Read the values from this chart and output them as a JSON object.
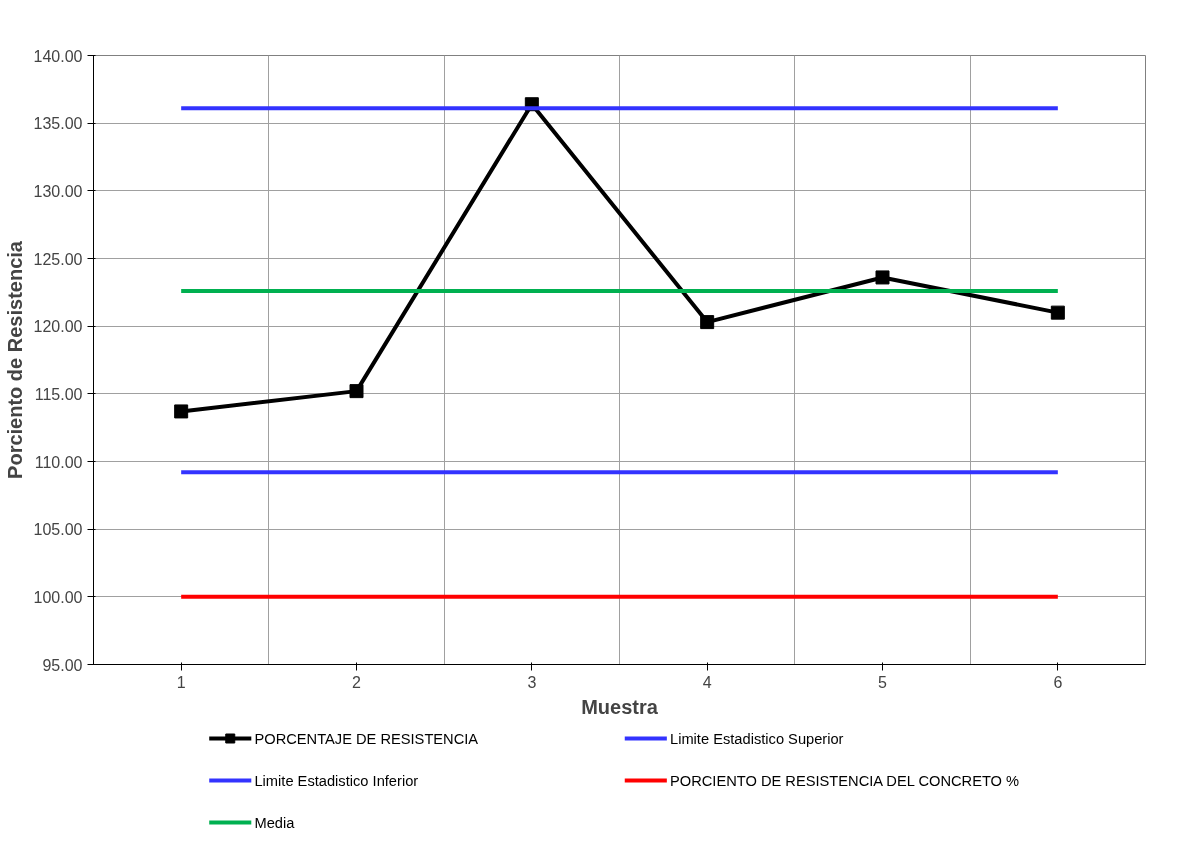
{
  "chart_data": {
    "type": "line",
    "xlabel": "Muestra",
    "ylabel": "Porciento de Resistencia",
    "categories": [
      "1",
      "2",
      "3",
      "4",
      "5",
      "6"
    ],
    "ylim": [
      95,
      140
    ],
    "yticks": [
      {
        "value": 95,
        "label": "95.00"
      },
      {
        "value": 100,
        "label": "100.00"
      },
      {
        "value": 105,
        "label": "105.00"
      },
      {
        "value": 110,
        "label": "110.00"
      },
      {
        "value": 115,
        "label": "115.00"
      },
      {
        "value": 120,
        "label": "120.00"
      },
      {
        "value": 125,
        "label": "125.00"
      },
      {
        "value": 130,
        "label": "130.00"
      },
      {
        "value": 135,
        "label": "135.00"
      },
      {
        "value": 140,
        "label": "140.00"
      }
    ],
    "grid": true,
    "legend": "bottom",
    "series": [
      {
        "name": "PORCENTAJE DE RESISTENCIA",
        "color": "#000000",
        "marker": "square",
        "values": [
          113.7,
          115.2,
          136.4,
          120.3,
          123.6,
          121.0
        ]
      },
      {
        "name": "Limite Estadistico Superior",
        "color": "#3333ff",
        "marker": "none",
        "values": [
          136.1,
          136.1,
          136.1,
          136.1,
          136.1,
          136.1
        ]
      },
      {
        "name": "Limite Estadistico Inferior",
        "color": "#3333ff",
        "marker": "none",
        "values": [
          109.2,
          109.2,
          109.2,
          109.2,
          109.2,
          109.2
        ]
      },
      {
        "name": "PORCIENTO DE RESISTENCIA DEL CONCRETO %",
        "color": "#ff0000",
        "marker": "none",
        "values": [
          100,
          100,
          100,
          100,
          100,
          100
        ]
      },
      {
        "name": "Media",
        "color": "#00b050",
        "marker": "none",
        "values": [
          122.6,
          122.6,
          122.6,
          122.6,
          122.6,
          122.6
        ]
      }
    ]
  }
}
